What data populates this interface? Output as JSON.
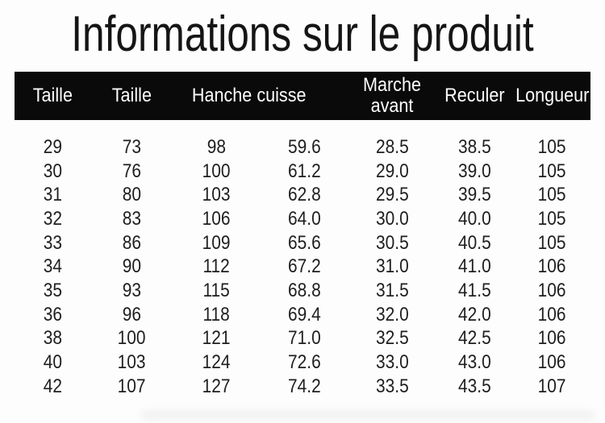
{
  "page": {
    "title": "Informations sur le produit"
  },
  "table": {
    "headers": [
      {
        "label": "Taille",
        "span": 1
      },
      {
        "label": "Taille",
        "span": 1
      },
      {
        "label": "Hanche cuisse",
        "span": 2
      },
      {
        "label": "Marche avant",
        "span": 1
      },
      {
        "label": "Reculer",
        "span": 1
      },
      {
        "label": "Longueur",
        "span": 1
      }
    ],
    "rows": [
      [
        "29",
        "73",
        "98",
        "59.6",
        "28.5",
        "38.5",
        "105"
      ],
      [
        "30",
        "76",
        "100",
        "61.2",
        "29.0",
        "39.0",
        "105"
      ],
      [
        "31",
        "80",
        "103",
        "62.8",
        "29.5",
        "39.5",
        "105"
      ],
      [
        "32",
        "83",
        "106",
        "64.0",
        "30.0",
        "40.0",
        "105"
      ],
      [
        "33",
        "86",
        "109",
        "65.6",
        "30.5",
        "40.5",
        "105"
      ],
      [
        "34",
        "90",
        "112",
        "67.2",
        "31.0",
        "41.0",
        "106"
      ],
      [
        "35",
        "93",
        "115",
        "68.8",
        "31.5",
        "41.5",
        "106"
      ],
      [
        "36",
        "96",
        "118",
        "69.4",
        "32.0",
        "42.0",
        "106"
      ],
      [
        "38",
        "100",
        "121",
        "71.0",
        "32.5",
        "42.5",
        "106"
      ],
      [
        "40",
        "103",
        "124",
        "72.6",
        "33.0",
        "43.0",
        "106"
      ],
      [
        "42",
        "107",
        "127",
        "74.2",
        "33.5",
        "43.5",
        "107"
      ]
    ]
  },
  "colors": {
    "header_bg": "#0a0a0a",
    "header_text": "#fcfcfc",
    "body_text": "#1e1e1e",
    "background": "#fdfdfd"
  }
}
